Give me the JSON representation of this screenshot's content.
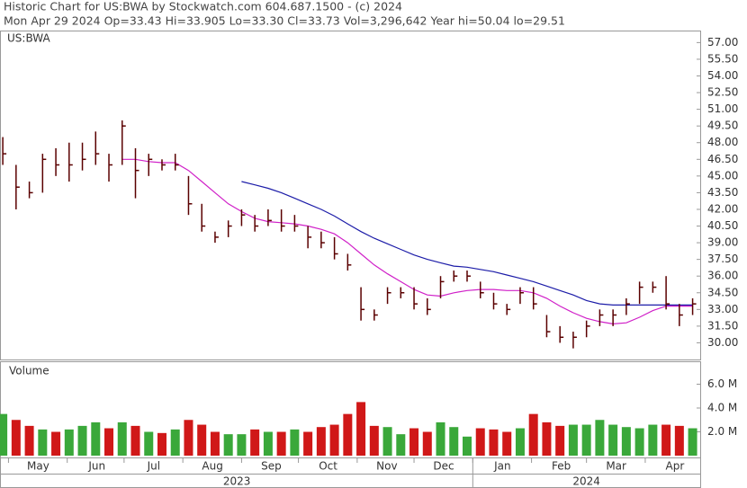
{
  "chart_data": {
    "type": "ohlc",
    "title": "Historic Chart for US:BWA by Stockwatch.com 604.687.1500 - (c) 2024",
    "subtitle": "Mon Apr 29 2024  Op=33.43  Hi=33.905  Lo=33.30  Cl=33.73  Vol=3,296,642  Year hi=50.04  lo=29.51",
    "symbol": "US:BWA",
    "bar_color": "#5a0000",
    "x": [
      "2023-04-28",
      "2023-05-05",
      "2023-05-12",
      "2023-05-19",
      "2023-05-26",
      "2023-06-02",
      "2023-06-09",
      "2023-06-16",
      "2023-06-23",
      "2023-06-30",
      "2023-07-07",
      "2023-07-14",
      "2023-07-21",
      "2023-07-28",
      "2023-08-04",
      "2023-08-11",
      "2023-08-18",
      "2023-08-25",
      "2023-09-01",
      "2023-09-08",
      "2023-09-15",
      "2023-09-22",
      "2023-09-29",
      "2023-10-06",
      "2023-10-13",
      "2023-10-20",
      "2023-10-27",
      "2023-11-03",
      "2023-11-10",
      "2023-11-17",
      "2023-11-24",
      "2023-12-01",
      "2023-12-08",
      "2023-12-15",
      "2023-12-22",
      "2023-12-29",
      "2024-01-05",
      "2024-01-12",
      "2024-01-19",
      "2024-01-26",
      "2024-02-02",
      "2024-02-09",
      "2024-02-16",
      "2024-02-23",
      "2024-03-01",
      "2024-03-08",
      "2024-03-15",
      "2024-03-22",
      "2024-03-29",
      "2024-04-05",
      "2024-04-12",
      "2024-04-19",
      "2024-04-26"
    ],
    "high": [
      48.5,
      46,
      44.5,
      47,
      47.5,
      48,
      48,
      49,
      47,
      50,
      47.5,
      47,
      46.5,
      47,
      45,
      42.5,
      40,
      41,
      42,
      41.5,
      42,
      42,
      41.5,
      40.5,
      40,
      39.5,
      38,
      35,
      33,
      35,
      35,
      35,
      34,
      36,
      36.5,
      36.5,
      35.5,
      34.5,
      33.5,
      35,
      35,
      32.5,
      31.5,
      31,
      32,
      33,
      33,
      34,
      35.5,
      35.5,
      36,
      33.5,
      34
    ],
    "low": [
      46,
      42,
      43,
      43.5,
      45,
      44.5,
      45.5,
      46,
      44.5,
      46,
      43,
      45,
      45.5,
      45.5,
      41.5,
      40,
      39,
      39.5,
      40.5,
      40,
      40.5,
      40,
      40,
      38.5,
      38.5,
      37.5,
      36.5,
      32,
      32,
      33.5,
      34,
      33,
      32.5,
      34,
      35.5,
      35.5,
      34,
      33,
      32.5,
      33.5,
      33,
      30.5,
      30,
      29.5,
      30.5,
      31.5,
      31.5,
      32.5,
      33.5,
      34.5,
      33,
      31.5,
      32.5
    ],
    "close": [
      47,
      44,
      43.5,
      46.5,
      46,
      46,
      46.5,
      47,
      46,
      49.5,
      45.5,
      46.5,
      46,
      46,
      42.5,
      40.5,
      39.5,
      40.5,
      41.5,
      40.5,
      41,
      40.5,
      40.5,
      39.5,
      39,
      38,
      37,
      33,
      32.5,
      34.5,
      34.5,
      33.5,
      33,
      35.5,
      36,
      36,
      34.5,
      33.5,
      33,
      34.5,
      33.5,
      31,
      30.5,
      30.5,
      31.5,
      32.5,
      32.5,
      33.5,
      35,
      35,
      33.5,
      32.5,
      33.5
    ],
    "moving_averages": [
      {
        "color": "#d020c8",
        "values": [
          null,
          null,
          null,
          null,
          null,
          null,
          null,
          null,
          null,
          46.5,
          46.5,
          46.3,
          46.2,
          46.2,
          45.5,
          44.5,
          43.5,
          42.5,
          41.8,
          41.2,
          40.9,
          40.8,
          40.7,
          40.5,
          40.2,
          39.8,
          39.0,
          38.0,
          37.0,
          36.2,
          35.5,
          34.8,
          34.3,
          34.2,
          34.5,
          34.7,
          34.8,
          34.8,
          34.7,
          34.7,
          34.5,
          34.0,
          33.3,
          32.7,
          32.2,
          31.9,
          31.7,
          31.8,
          32.3,
          32.9,
          33.3,
          33.3,
          33.3
        ]
      },
      {
        "color": "#1c1ca8",
        "values": [
          null,
          null,
          null,
          null,
          null,
          null,
          null,
          null,
          null,
          null,
          null,
          null,
          null,
          null,
          null,
          null,
          null,
          null,
          44.5,
          44.2,
          43.9,
          43.5,
          43.0,
          42.5,
          42.0,
          41.4,
          40.7,
          40.0,
          39.4,
          38.9,
          38.4,
          37.9,
          37.5,
          37.2,
          36.9,
          36.8,
          36.6,
          36.4,
          36.1,
          35.8,
          35.5,
          35.1,
          34.7,
          34.3,
          33.8,
          33.5,
          33.4,
          33.4,
          33.4,
          33.4,
          33.4,
          33.4,
          33.4
        ]
      }
    ],
    "ylim": [
      28.5,
      58
    ],
    "yticks": [
      {
        "value": 30,
        "label": "30.00"
      },
      {
        "value": 31.5,
        "label": "31.50"
      },
      {
        "value": 33,
        "label": "33.00"
      },
      {
        "value": 34.5,
        "label": "34.50"
      },
      {
        "value": 36,
        "label": "36.00"
      },
      {
        "value": 37.5,
        "label": "37.50"
      },
      {
        "value": 39,
        "label": "39.00"
      },
      {
        "value": 40.5,
        "label": "40.50"
      },
      {
        "value": 42,
        "label": "42.00"
      },
      {
        "value": 43.5,
        "label": "43.50"
      },
      {
        "value": 45,
        "label": "45.00"
      },
      {
        "value": 46.5,
        "label": "46.50"
      },
      {
        "value": 48,
        "label": "48.00"
      },
      {
        "value": 49.5,
        "label": "49.50"
      },
      {
        "value": 51,
        "label": "51.00"
      },
      {
        "value": 52.5,
        "label": "52.50"
      },
      {
        "value": 54,
        "label": "54.00"
      },
      {
        "value": 55.5,
        "label": "55.50"
      },
      {
        "value": 57,
        "label": "57.00"
      }
    ],
    "xlim": [
      "2023-04-27",
      "2024-04-30"
    ],
    "xticks": [
      {
        "value": "2023-05-01",
        "label": "May"
      },
      {
        "value": "2023-06-01",
        "label": "Jun"
      },
      {
        "value": "2023-07-01",
        "label": "Jul"
      },
      {
        "value": "2023-08-01",
        "label": "Aug"
      },
      {
        "value": "2023-09-01",
        "label": "Sep"
      },
      {
        "value": "2023-10-01",
        "label": "Oct"
      },
      {
        "value": "2023-11-01",
        "label": "Nov"
      },
      {
        "value": "2023-12-01",
        "label": "Dec"
      },
      {
        "value": "2024-01-01",
        "label": "Jan"
      },
      {
        "value": "2024-02-01",
        "label": "Feb"
      },
      {
        "value": "2024-03-01",
        "label": "Mar"
      },
      {
        "value": "2024-04-01",
        "label": "Apr"
      }
    ],
    "years": [
      {
        "value": "2023-01-01",
        "label": "2023"
      },
      {
        "value": "2024-01-01",
        "label": "2024"
      }
    ],
    "volume": {
      "label": "Volume",
      "up_color": "#3aa83a",
      "down_color": "#d01818",
      "values": [
        3.5,
        3.0,
        2.5,
        2.2,
        2.0,
        2.2,
        2.5,
        2.8,
        2.3,
        2.8,
        2.5,
        2.0,
        1.9,
        2.2,
        3.0,
        2.6,
        2.0,
        1.8,
        1.8,
        2.2,
        2.0,
        2.0,
        2.2,
        2.0,
        2.4,
        2.6,
        3.5,
        4.5,
        2.5,
        2.4,
        1.8,
        2.3,
        2.0,
        2.8,
        2.4,
        1.6,
        2.3,
        2.2,
        2.0,
        2.3,
        3.5,
        2.8,
        2.5,
        2.6,
        2.6,
        3.0,
        2.6,
        2.4,
        2.3,
        2.6,
        2.6,
        2.5,
        2.3
      ],
      "ylim": [
        0,
        7.85
      ],
      "yticks": [
        {
          "value": 2,
          "label": "2.0 M"
        },
        {
          "value": 4,
          "label": "4.0 M"
        },
        {
          "value": 6,
          "label": "6.0 M"
        }
      ]
    }
  }
}
